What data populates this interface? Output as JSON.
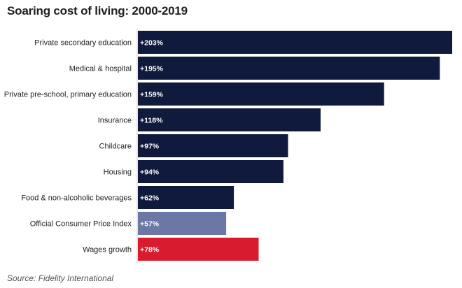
{
  "chart_data": {
    "type": "bar",
    "orientation": "horizontal",
    "title": "Soaring cost of living: 2000-2019",
    "xlabel": "",
    "ylabel": "",
    "xlim": [
      0,
      203
    ],
    "grid": false,
    "categories": [
      "Private secondary education",
      "Medical & hospital",
      "Private pre-school, primary education",
      "Insurance",
      "Childcare",
      "Housing",
      "Food & non-alcoholic beverages",
      "Official Consumer Price Index",
      "Wages growth"
    ],
    "values": [
      203,
      195,
      159,
      118,
      97,
      94,
      62,
      57,
      78
    ],
    "value_labels": [
      "+203%",
      "+195%",
      "+159%",
      "+118%",
      "+97%",
      "+94%",
      "+62%",
      "+57%",
      "+78%"
    ],
    "colors": [
      "#0f1a3c",
      "#0f1a3c",
      "#0f1a3c",
      "#0f1a3c",
      "#0f1a3c",
      "#0f1a3c",
      "#0f1a3c",
      "#6b78a6",
      "#d81b2f"
    ],
    "source": "Source: Fidelity International"
  }
}
